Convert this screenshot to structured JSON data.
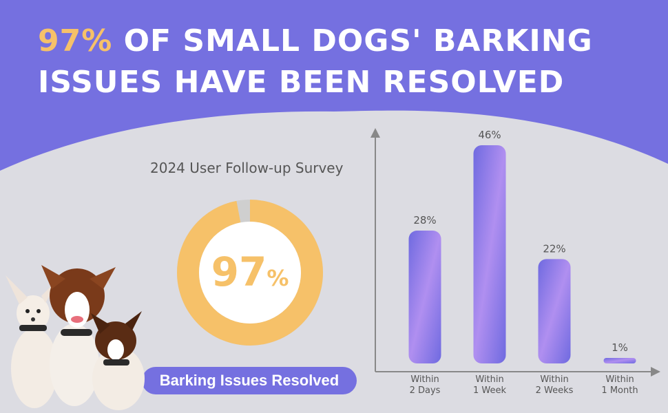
{
  "header": {
    "title_highlight": "97%",
    "title_line1_rest": " OF SMALL DOGS' BARKING",
    "title_line2": "ISSUES HAVE BEEN RESOLVED"
  },
  "survey": {
    "label": "2024 User Follow-up Survey",
    "donut_value": "97",
    "donut_unit": "%",
    "badge": "Barking Issues Resolved"
  },
  "colors": {
    "header_bg": "#7570e0",
    "accent_yellow": "#f6c169",
    "bar_fill": "#7570e0",
    "donut_remainder": "#cfcfcf",
    "page_bg": "#dcdce2"
  },
  "chart_data": [
    {
      "type": "pie",
      "values": [
        97,
        3
      ],
      "labels": [
        "97%",
        ""
      ]
    },
    {
      "type": "bar",
      "categories": [
        [
          "Within",
          "2 Days"
        ],
        [
          "Within",
          "1 Week"
        ],
        [
          "Within",
          "2 Weeks"
        ],
        [
          "Within",
          "1 Month"
        ]
      ],
      "values": [
        28,
        46,
        22,
        1
      ],
      "value_labels": [
        "28%",
        "46%",
        "22%",
        "1%"
      ],
      "ylim": [
        0,
        50
      ],
      "grid": false
    }
  ]
}
